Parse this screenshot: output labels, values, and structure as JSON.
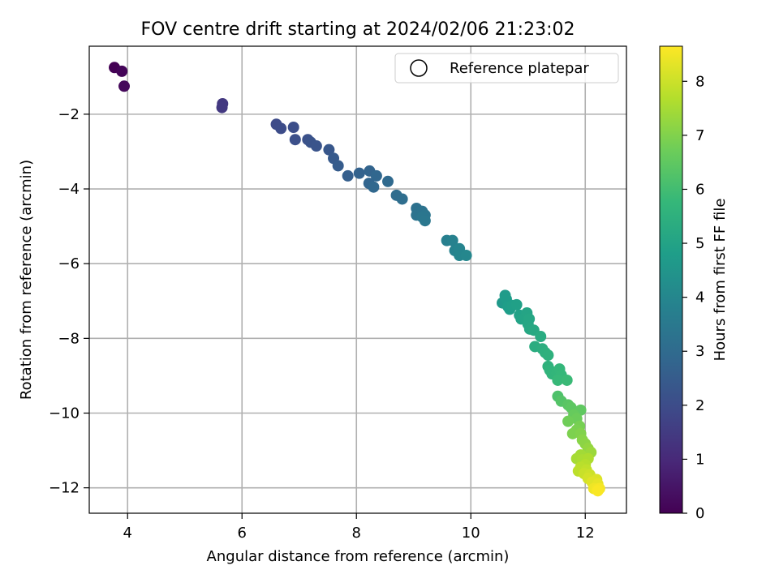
{
  "chart_data": {
    "type": "scatter",
    "title": "FOV centre drift starting at 2024/02/06 21:23:02",
    "xlabel": "Angular distance from reference (arcmin)",
    "ylabel": "Rotation from reference (arcmin)",
    "xlim": [
      3.33,
      12.72
    ],
    "ylim": [
      -12.68,
      -0.18
    ],
    "xticks": [
      4,
      6,
      8,
      10,
      12
    ],
    "yticks": [
      -2,
      -4,
      -6,
      -8,
      -10,
      -12
    ],
    "grid": true,
    "legend": {
      "location": "top-right",
      "entries": [
        "Reference platepar"
      ]
    },
    "colorbar": {
      "label": "Hours from first FF file",
      "min": 0,
      "max": 8.65,
      "ticks": [
        0,
        1,
        2,
        3,
        4,
        5,
        6,
        7,
        8
      ],
      "colormap": "viridis"
    },
    "points": [
      {
        "x": 3.77,
        "y": -0.75,
        "c": 0.0
      },
      {
        "x": 3.9,
        "y": -0.85,
        "c": 0.1
      },
      {
        "x": 3.94,
        "y": -1.25,
        "c": 0.2
      },
      {
        "x": 5.66,
        "y": -1.72,
        "c": 1.4
      },
      {
        "x": 5.65,
        "y": -1.82,
        "c": 1.45
      },
      {
        "x": 6.6,
        "y": -2.27,
        "c": 1.95
      },
      {
        "x": 6.68,
        "y": -2.38,
        "c": 2.0
      },
      {
        "x": 6.9,
        "y": -2.35,
        "c": 2.05
      },
      {
        "x": 6.93,
        "y": -2.68,
        "c": 2.1
      },
      {
        "x": 7.15,
        "y": -2.68,
        "c": 2.15
      },
      {
        "x": 7.2,
        "y": -2.75,
        "c": 2.2
      },
      {
        "x": 7.3,
        "y": -2.85,
        "c": 2.25
      },
      {
        "x": 7.52,
        "y": -2.95,
        "c": 2.35
      },
      {
        "x": 7.6,
        "y": -3.18,
        "c": 2.45
      },
      {
        "x": 7.68,
        "y": -3.38,
        "c": 2.5
      },
      {
        "x": 7.85,
        "y": -3.65,
        "c": 2.6
      },
      {
        "x": 8.05,
        "y": -3.58,
        "c": 2.7
      },
      {
        "x": 8.23,
        "y": -3.52,
        "c": 2.75
      },
      {
        "x": 8.35,
        "y": -3.65,
        "c": 2.85
      },
      {
        "x": 8.22,
        "y": -3.85,
        "c": 2.8
      },
      {
        "x": 8.3,
        "y": -3.95,
        "c": 2.9
      },
      {
        "x": 8.55,
        "y": -3.8,
        "c": 2.95
      },
      {
        "x": 8.7,
        "y": -4.17,
        "c": 3.05
      },
      {
        "x": 8.8,
        "y": -4.27,
        "c": 3.1
      },
      {
        "x": 9.05,
        "y": -4.52,
        "c": 3.2
      },
      {
        "x": 9.1,
        "y": -4.62,
        "c": 3.25
      },
      {
        "x": 9.05,
        "y": -4.7,
        "c": 3.3
      },
      {
        "x": 9.15,
        "y": -4.6,
        "c": 3.3
      },
      {
        "x": 9.2,
        "y": -4.7,
        "c": 3.35
      },
      {
        "x": 9.15,
        "y": -4.75,
        "c": 3.4
      },
      {
        "x": 9.2,
        "y": -4.85,
        "c": 3.45
      },
      {
        "x": 9.58,
        "y": -5.38,
        "c": 3.75
      },
      {
        "x": 9.68,
        "y": -5.38,
        "c": 3.8
      },
      {
        "x": 9.72,
        "y": -5.65,
        "c": 3.85
      },
      {
        "x": 9.8,
        "y": -5.6,
        "c": 3.9
      },
      {
        "x": 9.8,
        "y": -5.78,
        "c": 3.95
      },
      {
        "x": 9.92,
        "y": -5.78,
        "c": 4.0
      },
      {
        "x": 10.55,
        "y": -7.05,
        "c": 4.65
      },
      {
        "x": 10.6,
        "y": -6.85,
        "c": 4.7
      },
      {
        "x": 10.62,
        "y": -6.95,
        "c": 4.75
      },
      {
        "x": 10.65,
        "y": -7.15,
        "c": 4.8
      },
      {
        "x": 10.68,
        "y": -7.22,
        "c": 4.82
      },
      {
        "x": 10.72,
        "y": -7.12,
        "c": 4.85
      },
      {
        "x": 10.8,
        "y": -7.1,
        "c": 4.9
      },
      {
        "x": 10.85,
        "y": -7.38,
        "c": 4.95
      },
      {
        "x": 10.88,
        "y": -7.48,
        "c": 5.0
      },
      {
        "x": 10.95,
        "y": -7.45,
        "c": 5.02
      },
      {
        "x": 10.98,
        "y": -7.32,
        "c": 5.05
      },
      {
        "x": 11.0,
        "y": -7.62,
        "c": 5.1
      },
      {
        "x": 11.02,
        "y": -7.48,
        "c": 5.12
      },
      {
        "x": 11.03,
        "y": -7.75,
        "c": 5.15
      },
      {
        "x": 11.1,
        "y": -7.78,
        "c": 5.2
      },
      {
        "x": 11.22,
        "y": -7.95,
        "c": 5.3
      },
      {
        "x": 11.12,
        "y": -8.22,
        "c": 5.35
      },
      {
        "x": 11.25,
        "y": -8.28,
        "c": 5.4
      },
      {
        "x": 11.3,
        "y": -8.38,
        "c": 5.45
      },
      {
        "x": 11.35,
        "y": -8.45,
        "c": 5.5
      },
      {
        "x": 11.35,
        "y": -8.75,
        "c": 5.55
      },
      {
        "x": 11.38,
        "y": -8.85,
        "c": 5.6
      },
      {
        "x": 11.42,
        "y": -8.95,
        "c": 5.65
      },
      {
        "x": 11.5,
        "y": -8.92,
        "c": 5.7
      },
      {
        "x": 11.55,
        "y": -8.82,
        "c": 5.72
      },
      {
        "x": 11.58,
        "y": -8.98,
        "c": 5.75
      },
      {
        "x": 11.52,
        "y": -9.12,
        "c": 5.8
      },
      {
        "x": 11.68,
        "y": -9.12,
        "c": 5.85
      },
      {
        "x": 11.52,
        "y": -9.55,
        "c": 6.2
      },
      {
        "x": 11.58,
        "y": -9.68,
        "c": 6.3
      },
      {
        "x": 11.7,
        "y": -9.78,
        "c": 6.4
      },
      {
        "x": 11.75,
        "y": -9.85,
        "c": 6.45
      },
      {
        "x": 11.92,
        "y": -9.92,
        "c": 6.5
      },
      {
        "x": 11.8,
        "y": -10.05,
        "c": 6.6
      },
      {
        "x": 11.85,
        "y": -10.15,
        "c": 6.7
      },
      {
        "x": 11.7,
        "y": -10.22,
        "c": 6.75
      },
      {
        "x": 11.9,
        "y": -10.35,
        "c": 6.85
      },
      {
        "x": 11.85,
        "y": -10.45,
        "c": 6.9
      },
      {
        "x": 11.78,
        "y": -10.55,
        "c": 6.95
      },
      {
        "x": 11.92,
        "y": -10.55,
        "c": 7.0
      },
      {
        "x": 11.95,
        "y": -10.72,
        "c": 7.1
      },
      {
        "x": 12.0,
        "y": -10.82,
        "c": 7.15
      },
      {
        "x": 12.05,
        "y": -10.95,
        "c": 7.25
      },
      {
        "x": 12.1,
        "y": -11.05,
        "c": 7.35
      },
      {
        "x": 11.92,
        "y": -11.12,
        "c": 7.45
      },
      {
        "x": 11.85,
        "y": -11.22,
        "c": 7.5
      },
      {
        "x": 11.95,
        "y": -11.25,
        "c": 7.55
      },
      {
        "x": 12.05,
        "y": -11.22,
        "c": 7.6
      },
      {
        "x": 12.0,
        "y": -11.38,
        "c": 7.7
      },
      {
        "x": 11.92,
        "y": -11.45,
        "c": 7.75
      },
      {
        "x": 11.88,
        "y": -11.55,
        "c": 7.8
      },
      {
        "x": 12.02,
        "y": -11.52,
        "c": 7.85
      },
      {
        "x": 11.98,
        "y": -11.62,
        "c": 7.95
      },
      {
        "x": 12.08,
        "y": -11.65,
        "c": 8.0
      },
      {
        "x": 12.05,
        "y": -11.75,
        "c": 8.1
      },
      {
        "x": 12.2,
        "y": -11.78,
        "c": 8.2
      },
      {
        "x": 12.12,
        "y": -11.85,
        "c": 8.25
      },
      {
        "x": 12.22,
        "y": -11.9,
        "c": 8.35
      },
      {
        "x": 12.15,
        "y": -12.02,
        "c": 8.45
      },
      {
        "x": 12.2,
        "y": -12.05,
        "c": 8.5
      },
      {
        "x": 12.25,
        "y": -12.02,
        "c": 8.55
      },
      {
        "x": 12.22,
        "y": -12.08,
        "c": 8.6
      }
    ]
  }
}
